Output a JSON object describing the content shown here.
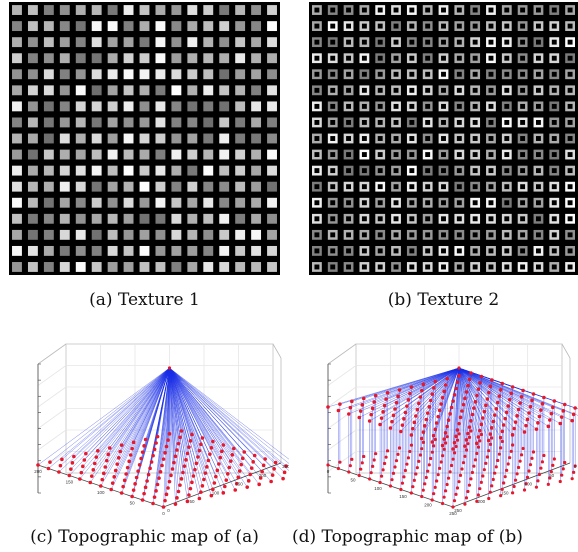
{
  "figure": {
    "panels": [
      {
        "id": "a",
        "caption": "(a)  Texture 1",
        "kind": "texture",
        "style": "filled",
        "rows": 17,
        "cols": 17
      },
      {
        "id": "b",
        "caption": "(b)  Texture 2",
        "kind": "texture",
        "style": "hollow",
        "rows": 17,
        "cols": 17
      },
      {
        "id": "c",
        "caption": "(c)  Topographic map of (a)",
        "kind": "topographic",
        "variant": "single-layer",
        "x_ticks": [
          "200",
          "150",
          "100",
          "50",
          "0"
        ],
        "y_ticks": [
          "0",
          "50",
          "100",
          "150",
          "200",
          "250"
        ]
      },
      {
        "id": "d",
        "caption": "(d)  Topographic map of (b)",
        "kind": "topographic",
        "variant": "two-layer",
        "x_ticks": [
          "0",
          "50",
          "100",
          "150",
          "200",
          "250"
        ],
        "y_ticks": [
          "250",
          "200",
          "150",
          "100",
          "50",
          "0"
        ]
      }
    ],
    "colors": {
      "node": "#e8182c",
      "edge": "#1a2ee6",
      "background": "#000000",
      "grid": "#cfcfcf"
    }
  }
}
